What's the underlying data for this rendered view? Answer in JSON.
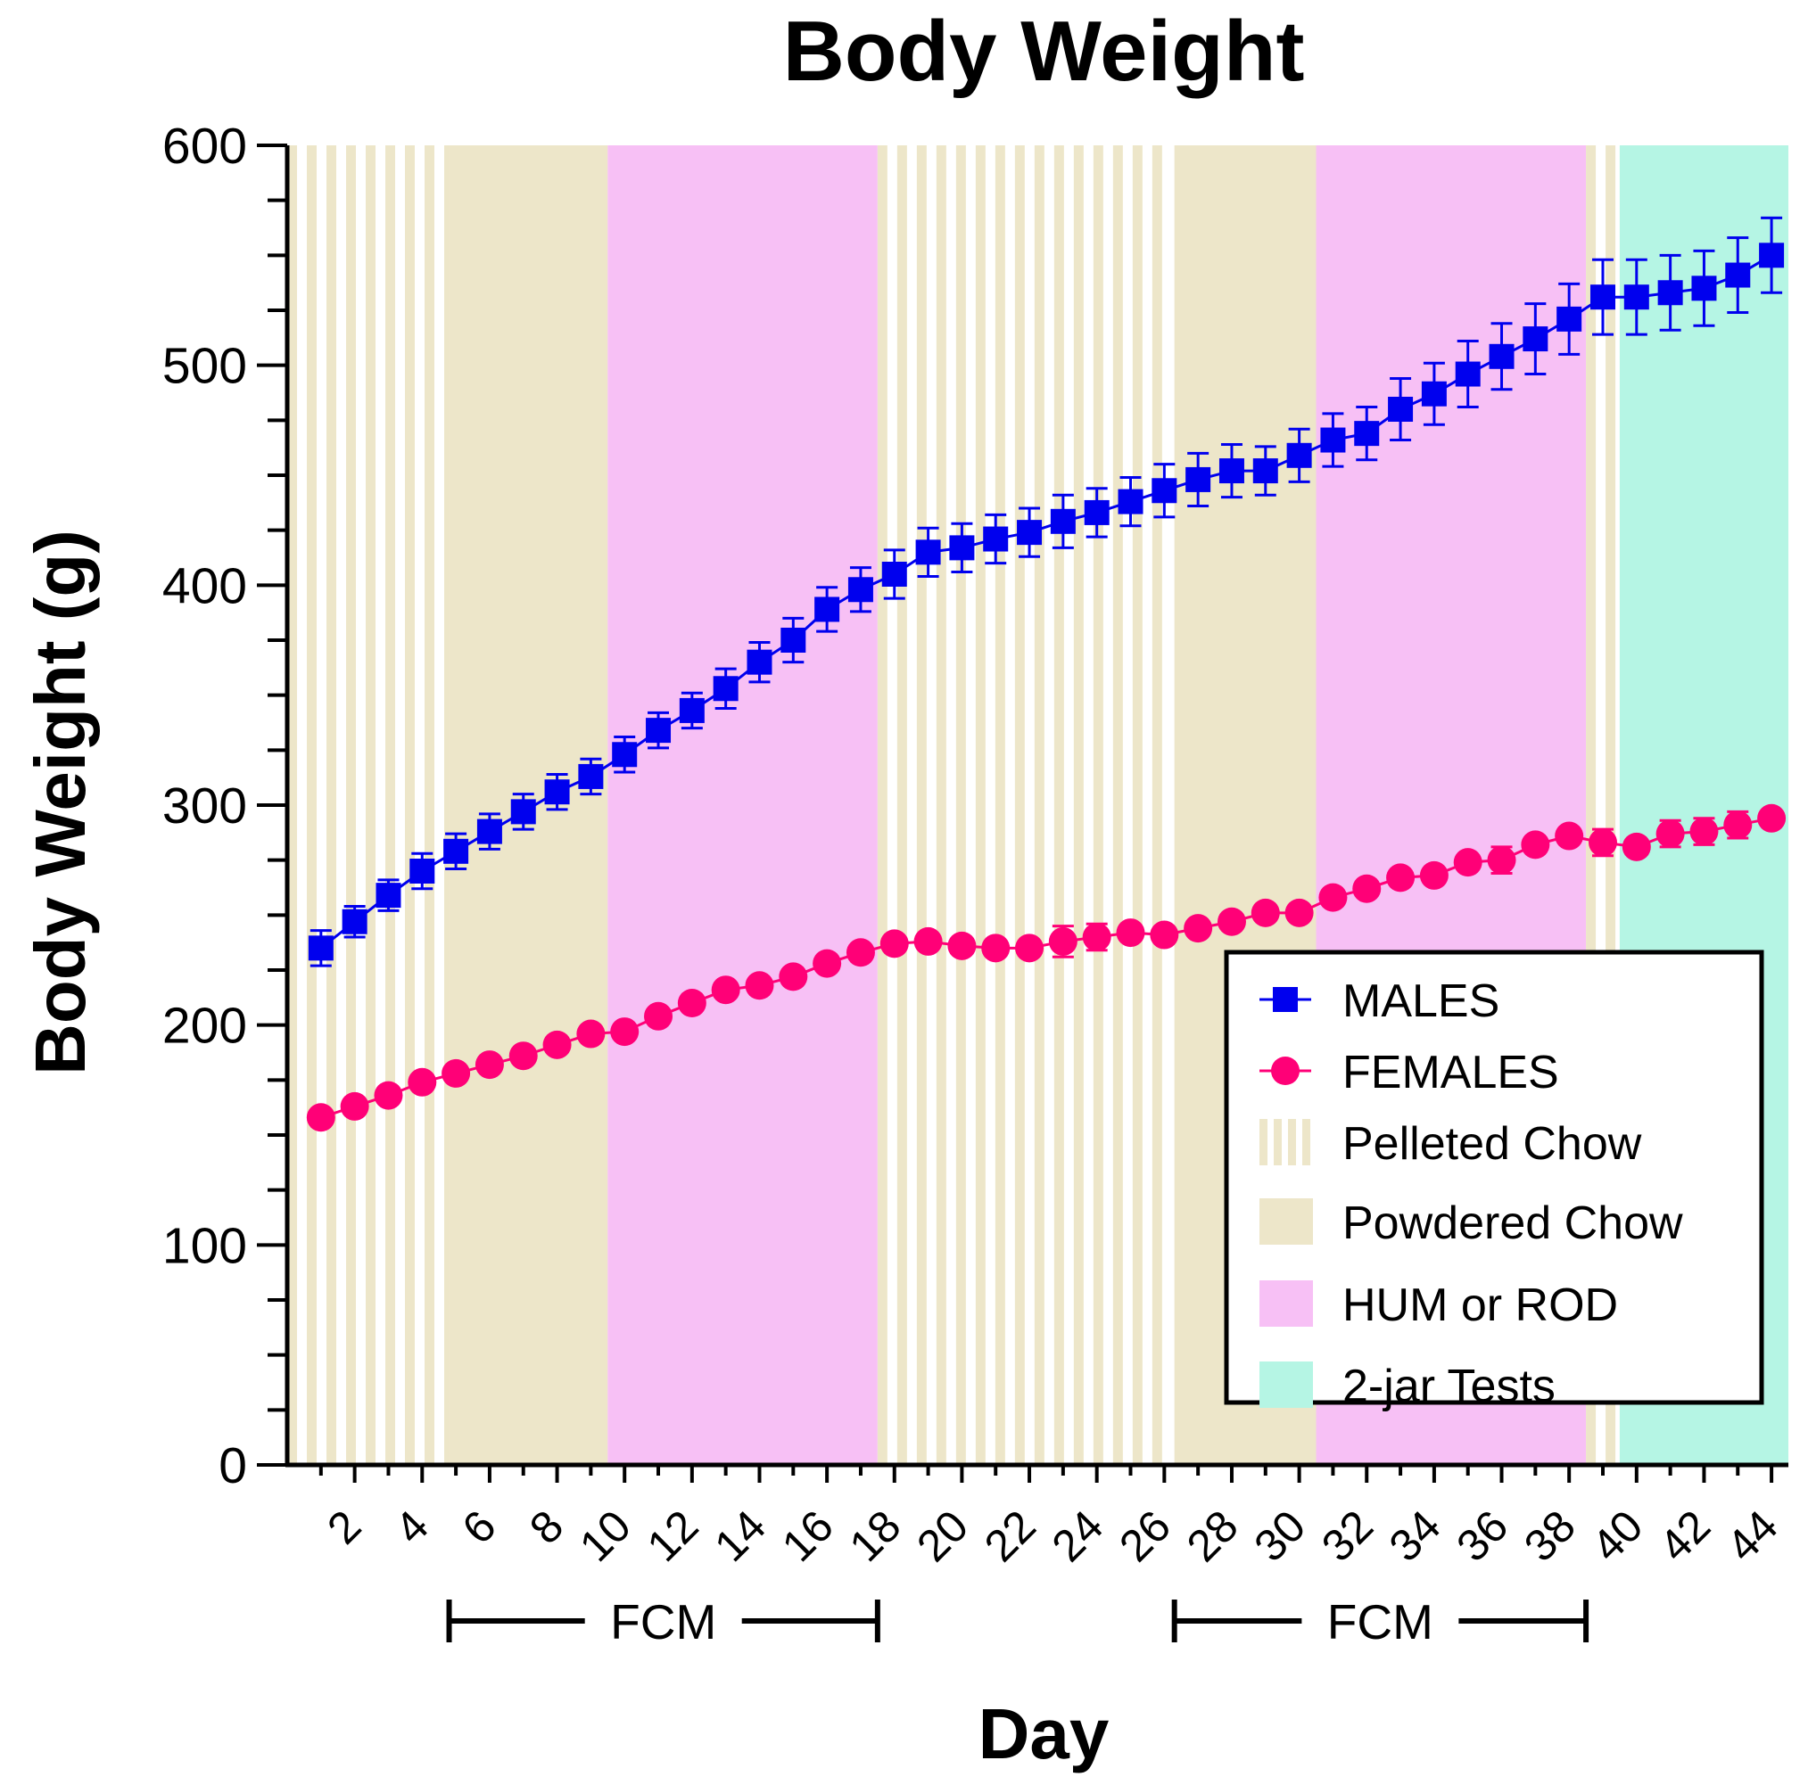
{
  "chart_data": {
    "type": "line",
    "title": "Body Weight",
    "xlabel": "Day",
    "ylabel": "Body Weight (g)",
    "ylim": [
      0,
      600
    ],
    "xlim": [
      0,
      44.5
    ],
    "y_ticks": [
      "0",
      "100",
      "200",
      "300",
      "400",
      "500",
      "600"
    ],
    "x_ticks": [
      "2",
      "4",
      "6",
      "8",
      "10",
      "12",
      "14",
      "16",
      "18",
      "20",
      "22",
      "24",
      "26",
      "28",
      "30",
      "32",
      "34",
      "36",
      "38",
      "40",
      "42",
      "44"
    ],
    "x": [
      1,
      2,
      3,
      4,
      5,
      6,
      7,
      8,
      9,
      10,
      11,
      12,
      13,
      14,
      15,
      16,
      17,
      18,
      19,
      20,
      21,
      22,
      23,
      24,
      25,
      26,
      27,
      28,
      29,
      30,
      31,
      32,
      33,
      34,
      35,
      36,
      37,
      38,
      39,
      40,
      41,
      42,
      43,
      44
    ],
    "series": [
      {
        "name": "MALES",
        "color": "#0000ee",
        "marker": "square",
        "values": [
          235,
          247,
          259,
          270,
          279,
          288,
          297,
          306,
          313,
          323,
          334,
          343,
          353,
          365,
          375,
          389,
          398,
          405,
          415,
          417,
          421,
          424,
          429,
          433,
          438,
          443,
          448,
          452,
          452,
          459,
          466,
          469,
          480,
          487,
          496,
          504,
          512,
          521,
          531,
          531,
          533,
          535,
          541,
          550
        ],
        "error": [
          8,
          7,
          7,
          8,
          8,
          8,
          8,
          8,
          8,
          8,
          8,
          8,
          9,
          9,
          10,
          10,
          10,
          11,
          11,
          11,
          11,
          11,
          12,
          11,
          11,
          12,
          12,
          12,
          11,
          12,
          12,
          12,
          14,
          14,
          15,
          15,
          16,
          16,
          17,
          17,
          17,
          17,
          17,
          17
        ]
      },
      {
        "name": "FEMALES",
        "color": "#ff0077",
        "marker": "circle",
        "values": [
          158,
          163,
          168,
          174,
          178,
          182,
          186,
          191,
          196,
          197,
          204,
          210,
          216,
          218,
          222,
          228,
          233,
          237,
          238,
          236,
          235,
          235,
          238,
          240,
          242,
          241,
          244,
          247,
          251,
          251,
          258,
          262,
          267,
          268,
          274,
          275,
          282,
          286,
          283,
          281,
          287,
          288,
          291,
          294
        ],
        "error": [
          0,
          0,
          0,
          0,
          0,
          0,
          0,
          0,
          0,
          0,
          0,
          0,
          0,
          0,
          0,
          0,
          0,
          0,
          0,
          0,
          0,
          0,
          7,
          6,
          0,
          0,
          0,
          0,
          0,
          0,
          0,
          0,
          0,
          0,
          0,
          6,
          0,
          0,
          6,
          0,
          6,
          6,
          6,
          0
        ]
      }
    ],
    "background_phases": [
      {
        "name": "Pelleted Chow",
        "start": 0,
        "end": 4.8,
        "style": "stripes"
      },
      {
        "name": "Powdered Chow",
        "start": 4.8,
        "end": 9.5
      },
      {
        "name": "HUM or ROD",
        "start": 9.5,
        "end": 17.5
      },
      {
        "name": "Pelleted Chow",
        "start": 17.5,
        "end": 26.3,
        "style": "stripes"
      },
      {
        "name": "Powdered Chow",
        "start": 26.3,
        "end": 30.5
      },
      {
        "name": "HUM or ROD",
        "start": 30.5,
        "end": 38.5
      },
      {
        "name": "Pelleted Chow",
        "start": 38.5,
        "end": 39.5,
        "style": "stripes"
      },
      {
        "name": "2-jar Tests",
        "start": 39.5,
        "end": 44.5
      }
    ],
    "phase_colors": {
      "Pelleted Chow": "#ede6c9",
      "Powdered Chow": "#ede6c9",
      "HUM or ROD": "#f7c0f5",
      "2-jar Tests": "#b5f5e4"
    },
    "annotations": [
      {
        "label": "FCM",
        "start": 4.8,
        "end": 17.5
      },
      {
        "label": "FCM",
        "start": 26.3,
        "end": 38.5
      }
    ],
    "legend": {
      "position": "lower-right",
      "entries": [
        {
          "label": "MALES",
          "kind": "series-square",
          "color": "#0000ee"
        },
        {
          "label": "FEMALES",
          "kind": "series-circle",
          "color": "#ff0077"
        },
        {
          "label": "Pelleted Chow",
          "kind": "stripes",
          "color": "#ede6c9"
        },
        {
          "label": "Powdered Chow",
          "kind": "fill",
          "color": "#ede6c9"
        },
        {
          "label": "HUM or ROD",
          "kind": "fill",
          "color": "#f7c0f5"
        },
        {
          "label": "2-jar Tests",
          "kind": "fill",
          "color": "#b5f5e4"
        }
      ]
    }
  }
}
